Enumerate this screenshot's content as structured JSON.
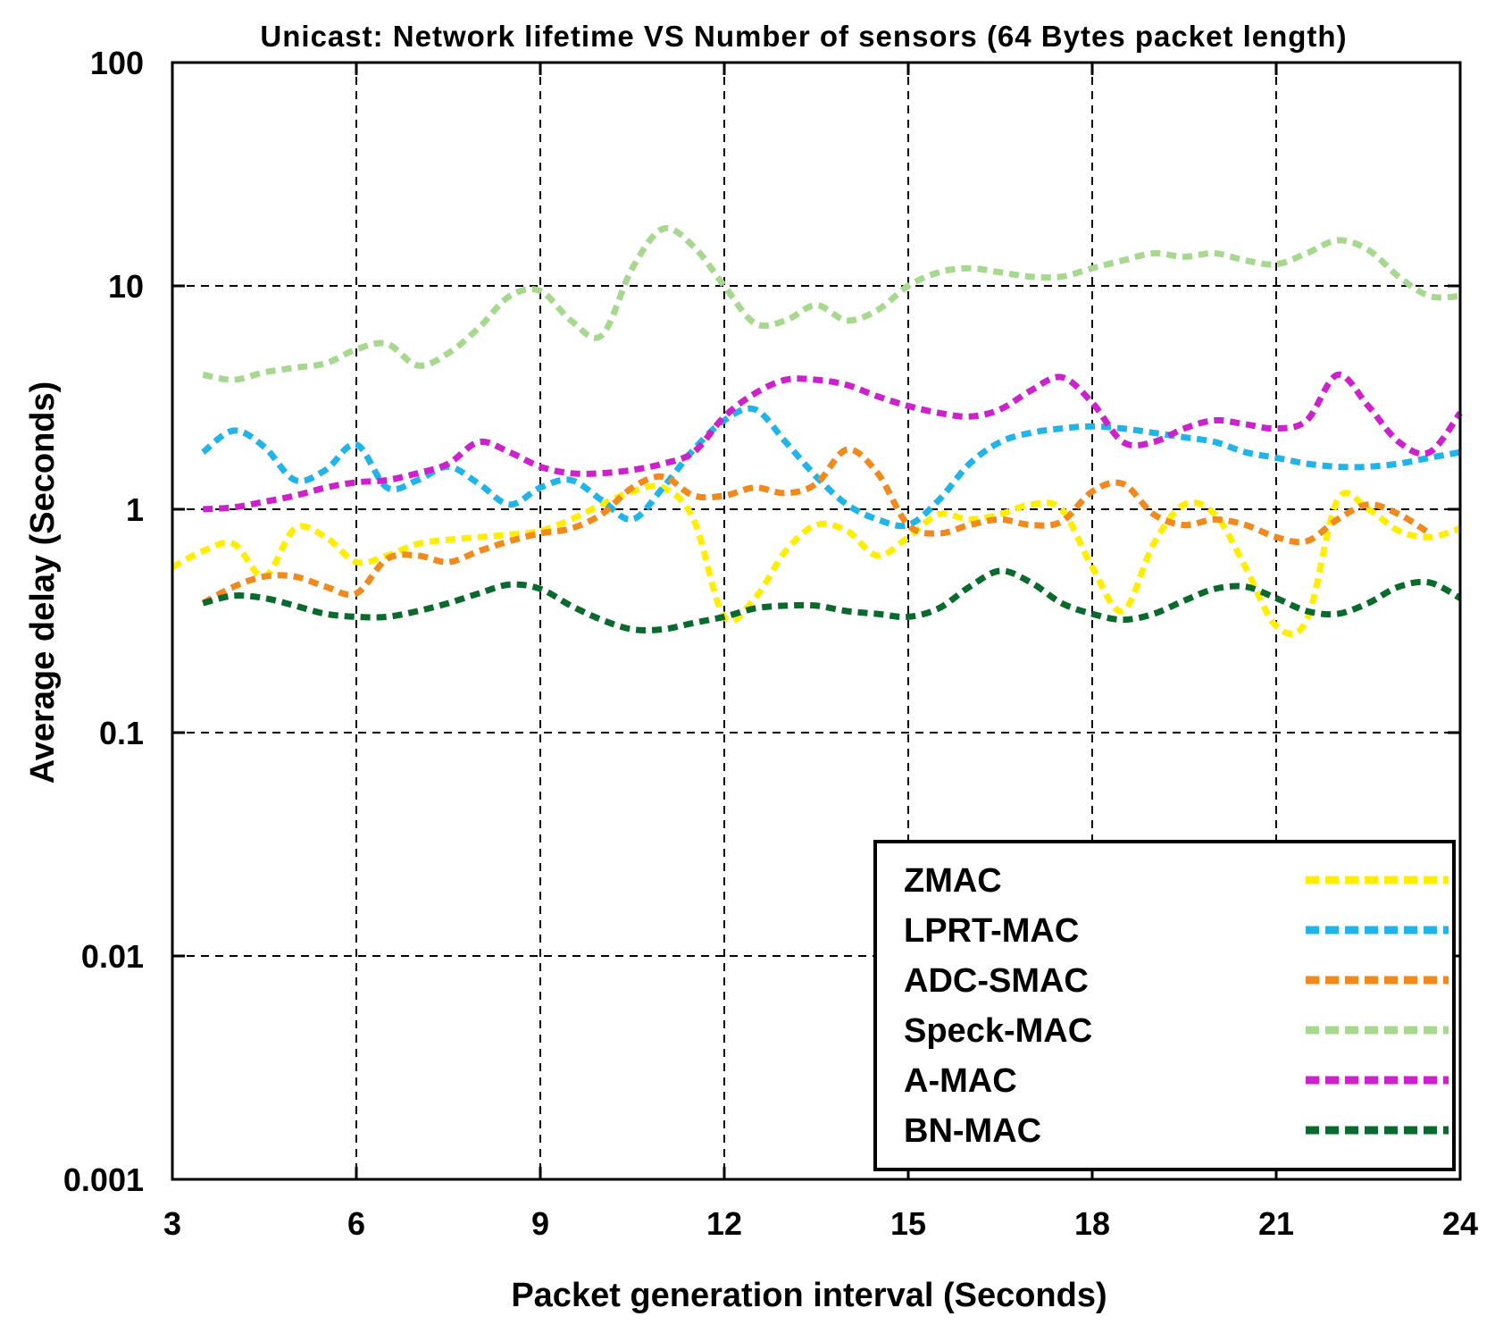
{
  "chart_data": {
    "type": "line",
    "title": "Unicast: Network lifetime VS Number of sensors (64 Bytes packet length)",
    "xlabel": "Packet generation interval (Seconds)",
    "ylabel": "Average delay (Seconds)",
    "xlim": [
      3,
      24
    ],
    "ylim": [
      0.001,
      100
    ],
    "yscale": "log",
    "xticks": [
      3,
      6,
      9,
      12,
      15,
      18,
      21,
      24
    ],
    "xtick_labels": [
      "3",
      "6",
      "9",
      "12",
      "15",
      "18",
      "21",
      "24"
    ],
    "yticks": [
      0.001,
      0.01,
      0.1,
      1,
      10,
      100
    ],
    "ytick_labels": [
      "0.001",
      "0.01",
      "0.1",
      "1",
      "10",
      "100"
    ],
    "grid": true,
    "legend_position": "bottom-right",
    "series": [
      {
        "name": "ZMAC",
        "color": "#ffee00",
        "x": [
          3,
          3.5,
          4,
          4.5,
          5,
          5.5,
          6,
          6.5,
          7,
          7.5,
          8,
          8.5,
          9,
          9.5,
          10,
          10.5,
          11,
          11.5,
          12,
          12.5,
          13,
          13.5,
          14,
          14.5,
          15,
          15.5,
          16,
          16.5,
          17,
          17.5,
          18,
          18.5,
          19,
          19.5,
          20,
          20.5,
          21,
          21.5,
          22,
          22.5,
          23,
          23.5,
          24
        ],
        "values": [
          0.55,
          0.65,
          0.7,
          0.5,
          0.82,
          0.75,
          0.58,
          0.62,
          0.7,
          0.73,
          0.75,
          0.77,
          0.8,
          0.9,
          1.05,
          1.2,
          1.25,
          0.9,
          0.33,
          0.4,
          0.65,
          0.85,
          0.8,
          0.62,
          0.75,
          0.95,
          0.9,
          0.95,
          1.05,
          1.0,
          0.55,
          0.35,
          0.7,
          1.05,
          0.95,
          0.55,
          0.3,
          0.32,
          1.1,
          1.0,
          0.8,
          0.75,
          0.82
        ]
      },
      {
        "name": "LPRT-MAC",
        "color": "#22b4e8",
        "x": [
          3.5,
          4,
          4.5,
          5,
          5.5,
          6,
          6.5,
          7,
          7.5,
          8,
          8.5,
          9,
          9.5,
          10,
          10.5,
          11,
          11.5,
          12,
          12.5,
          13,
          13.5,
          14,
          14.5,
          15,
          15.5,
          16,
          16.5,
          17,
          17.5,
          18,
          18.5,
          19,
          19.5,
          20,
          20.5,
          21,
          21.5,
          22,
          22.5,
          23,
          23.5,
          24
        ],
        "values": [
          1.8,
          2.25,
          1.9,
          1.35,
          1.5,
          1.95,
          1.25,
          1.35,
          1.55,
          1.3,
          1.05,
          1.25,
          1.35,
          1.1,
          0.9,
          1.25,
          1.85,
          2.5,
          2.8,
          2.0,
          1.4,
          1.05,
          0.9,
          0.85,
          1.1,
          1.6,
          2.0,
          2.2,
          2.3,
          2.35,
          2.3,
          2.2,
          2.1,
          2.0,
          1.8,
          1.7,
          1.6,
          1.55,
          1.55,
          1.6,
          1.7,
          1.8
        ]
      },
      {
        "name": "ADC-SMAC",
        "color": "#f08a1e",
        "x": [
          3.5,
          4,
          4.5,
          5,
          5.5,
          6,
          6.5,
          7,
          7.5,
          8,
          8.5,
          9,
          9.5,
          10,
          10.5,
          11,
          11.5,
          12,
          12.5,
          13,
          13.5,
          14,
          14.5,
          15,
          15.5,
          16,
          16.5,
          17,
          17.5,
          18,
          18.5,
          19,
          19.5,
          20,
          20.5,
          21,
          21.5,
          22,
          22.5,
          23,
          23.5
        ],
        "values": [
          0.38,
          0.45,
          0.5,
          0.5,
          0.45,
          0.42,
          0.6,
          0.62,
          0.58,
          0.65,
          0.72,
          0.78,
          0.82,
          0.95,
          1.25,
          1.4,
          1.15,
          1.15,
          1.25,
          1.18,
          1.3,
          1.85,
          1.45,
          0.85,
          0.78,
          0.85,
          0.9,
          0.85,
          0.88,
          1.2,
          1.3,
          0.95,
          0.85,
          0.9,
          0.85,
          0.75,
          0.72,
          0.9,
          1.05,
          0.95,
          0.78
        ]
      },
      {
        "name": "Speck-MAC",
        "color": "#a8d890",
        "x": [
          3.5,
          4,
          4.5,
          5,
          5.5,
          6,
          6.5,
          7,
          7.5,
          8,
          8.5,
          9,
          9.5,
          10,
          10.5,
          11,
          11.5,
          12,
          12.5,
          13,
          13.5,
          14,
          14.5,
          15,
          15.5,
          16,
          16.5,
          17,
          17.5,
          18,
          18.5,
          19,
          19.5,
          20,
          20.5,
          21,
          21.5,
          22,
          22.5,
          23,
          23.5,
          24
        ],
        "values": [
          4.0,
          3.8,
          4.1,
          4.3,
          4.5,
          5.2,
          5.5,
          4.4,
          5.0,
          6.5,
          9.0,
          9.5,
          7.0,
          6.0,
          12.0,
          18.0,
          15.0,
          10.0,
          6.8,
          7.0,
          8.2,
          7.0,
          7.8,
          10.0,
          11.5,
          12.0,
          11.5,
          11.0,
          11.0,
          12.0,
          13.0,
          14.0,
          13.5,
          14.0,
          13.0,
          12.5,
          14.0,
          16.0,
          14.5,
          11.0,
          9.0,
          9.0
        ]
      },
      {
        "name": "A-MAC",
        "color": "#cc22cc",
        "x": [
          3.5,
          4,
          4.5,
          5,
          5.5,
          6,
          6.5,
          7,
          7.5,
          8,
          8.5,
          9,
          9.5,
          10,
          10.5,
          11,
          11.5,
          12,
          12.5,
          13,
          13.5,
          14,
          14.5,
          15,
          15.5,
          16,
          16.5,
          17,
          17.5,
          18,
          18.5,
          19,
          19.5,
          20,
          20.5,
          21,
          21.5,
          22,
          22.5,
          23,
          23.5,
          24
        ],
        "values": [
          1.0,
          1.02,
          1.08,
          1.15,
          1.25,
          1.32,
          1.35,
          1.45,
          1.6,
          2.0,
          1.8,
          1.55,
          1.45,
          1.45,
          1.5,
          1.6,
          1.8,
          2.6,
          3.3,
          3.8,
          3.8,
          3.6,
          3.2,
          2.9,
          2.7,
          2.6,
          2.8,
          3.4,
          3.9,
          3.0,
          2.0,
          2.0,
          2.3,
          2.5,
          2.4,
          2.3,
          2.5,
          4.0,
          2.9,
          2.0,
          1.8,
          2.7
        ]
      },
      {
        "name": "BN-MAC",
        "color": "#0a6a2e",
        "x": [
          3.5,
          4,
          4.5,
          5,
          5.5,
          6,
          6.5,
          7,
          7.5,
          8,
          8.5,
          9,
          9.5,
          10,
          10.5,
          11,
          11.5,
          12,
          12.5,
          13,
          13.5,
          14,
          14.5,
          15,
          15.5,
          16,
          16.5,
          17,
          17.5,
          18,
          18.5,
          19,
          19.5,
          20,
          20.5,
          21,
          21.5,
          22,
          22.5,
          23,
          23.5,
          24
        ],
        "values": [
          0.38,
          0.41,
          0.4,
          0.37,
          0.34,
          0.33,
          0.33,
          0.35,
          0.38,
          0.42,
          0.46,
          0.44,
          0.37,
          0.32,
          0.29,
          0.29,
          0.31,
          0.33,
          0.36,
          0.37,
          0.37,
          0.35,
          0.34,
          0.33,
          0.36,
          0.45,
          0.53,
          0.47,
          0.38,
          0.34,
          0.32,
          0.34,
          0.39,
          0.44,
          0.45,
          0.4,
          0.35,
          0.34,
          0.38,
          0.45,
          0.47,
          0.4
        ]
      }
    ]
  }
}
